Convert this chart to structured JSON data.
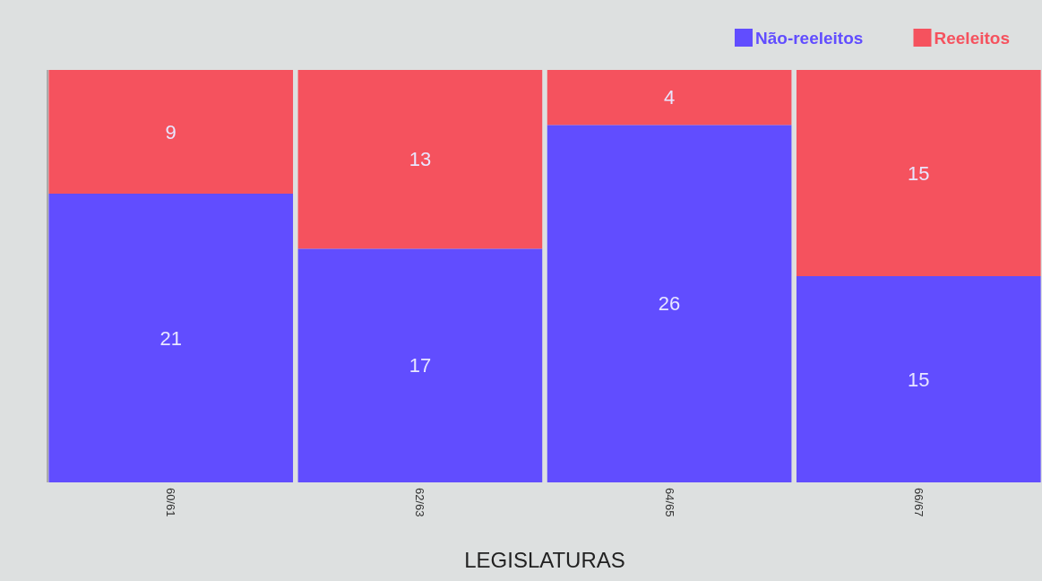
{
  "chart_data": {
    "type": "bar",
    "stacked": true,
    "xlabel": "LEGISLATURAS",
    "categories": [
      "60/61",
      "62/63",
      "64/65",
      "66/67"
    ],
    "series": [
      {
        "name": "Não-reeleitos",
        "color": "#614dff",
        "values": [
          21,
          17,
          26,
          15
        ]
      },
      {
        "name": "Reeleitos",
        "color": "#f5525e",
        "values": [
          9,
          13,
          4,
          15
        ]
      }
    ],
    "ylim": [
      0,
      30
    ],
    "tick_labels": "x",
    "data_labels": true,
    "legend": "top right"
  }
}
